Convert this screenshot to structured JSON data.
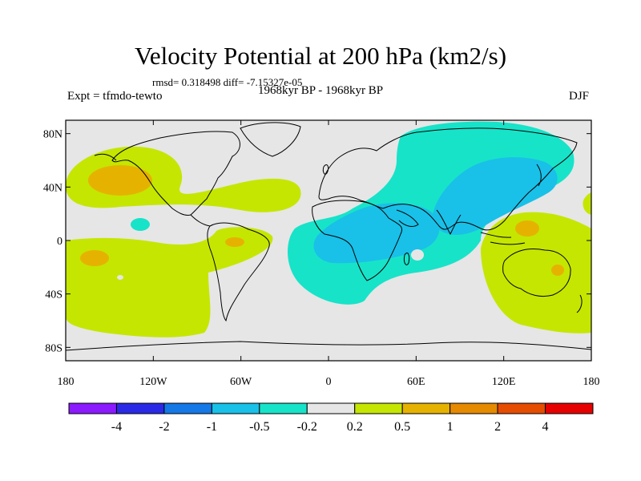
{
  "title": "Velocity Potential at 200 hPa (km2/s)",
  "stats": "rmsd= 0.318498 diff= -7.15327e-05",
  "left_label": "Expt = tfmdo-tewto",
  "center_label": "1968kyr BP - 1968kyr BP",
  "right_label": "DJF",
  "y_ticks": [
    {
      "label": "80N",
      "lat": 80
    },
    {
      "label": "40N",
      "lat": 40
    },
    {
      "label": "0",
      "lat": 0
    },
    {
      "label": "40S",
      "lat": -40
    },
    {
      "label": "80S",
      "lat": -80
    }
  ],
  "x_ticks": [
    {
      "label": "180",
      "lon": -180
    },
    {
      "label": "120W",
      "lon": -120
    },
    {
      "label": "60W",
      "lon": -60
    },
    {
      "label": "0",
      "lon": 0
    },
    {
      "label": "60E",
      "lon": 60
    },
    {
      "label": "120E",
      "lon": 120
    },
    {
      "label": "180",
      "lon": 180
    }
  ],
  "colorbar": {
    "colors": [
      "#8c1aff",
      "#2a2ae6",
      "#1479e6",
      "#19c0e8",
      "#17e3c9",
      "#e6e6e6",
      "#c5e600",
      "#e6b200",
      "#e68a00",
      "#e64d00",
      "#e60000"
    ],
    "labels": [
      "-4",
      "-2",
      "-1",
      "-0.5",
      "-0.2",
      "0.2",
      "0.5",
      "1",
      "2",
      "4"
    ]
  },
  "colors": {
    "background": "#e6e6e6",
    "positive_weak": "#c5e600",
    "positive_mid": "#e6b200",
    "negative_weak": "#17e3c9",
    "negative_mid": "#19c0e8"
  }
}
